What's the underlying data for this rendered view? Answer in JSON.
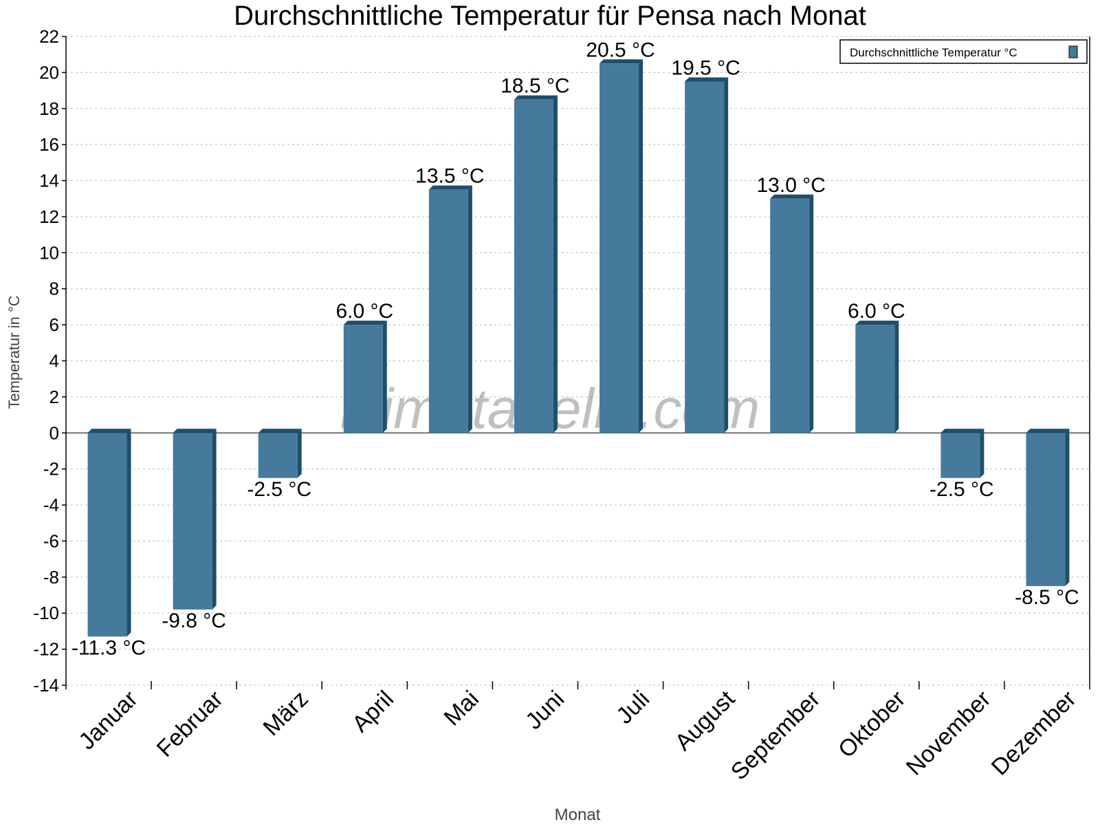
{
  "chart_data": {
    "type": "bar",
    "title": "Durchschnittliche Temperatur für Pensa nach Monat",
    "xlabel": "Monat",
    "ylabel": "Temperatur in °C",
    "ylim": [
      -14,
      22
    ],
    "yticks": [
      22,
      20,
      18,
      16,
      14,
      12,
      10,
      8,
      6,
      4,
      2,
      0,
      -2,
      -4,
      -6,
      -8,
      -10,
      -12,
      -14
    ],
    "grid": true,
    "legend_position": "top-right",
    "categories": [
      "Januar",
      "Februar",
      "März",
      "April",
      "Mai",
      "Juni",
      "Juli",
      "August",
      "September",
      "Oktober",
      "November",
      "Dezember"
    ],
    "series": [
      {
        "name": "Durchschnittliche Temperatur °C",
        "values": [
          -11.3,
          -9.8,
          -2.5,
          6.0,
          13.5,
          18.5,
          20.5,
          19.5,
          13.0,
          6.0,
          -2.5,
          -8.5
        ],
        "labels": [
          "-11.3 °C",
          "-9.8 °C",
          "-2.5 °C",
          "6.0 °C",
          "13.5 °C",
          "18.5 °C",
          "20.5 °C",
          "19.5 °C",
          "13.0 °C",
          "6.0 °C",
          "-2.5 °C",
          "-8.5 °C"
        ]
      }
    ],
    "colors": {
      "bar": "#467a9c",
      "bar_side": "#1d4e6e"
    },
    "watermark": "klimatabelle.com"
  }
}
